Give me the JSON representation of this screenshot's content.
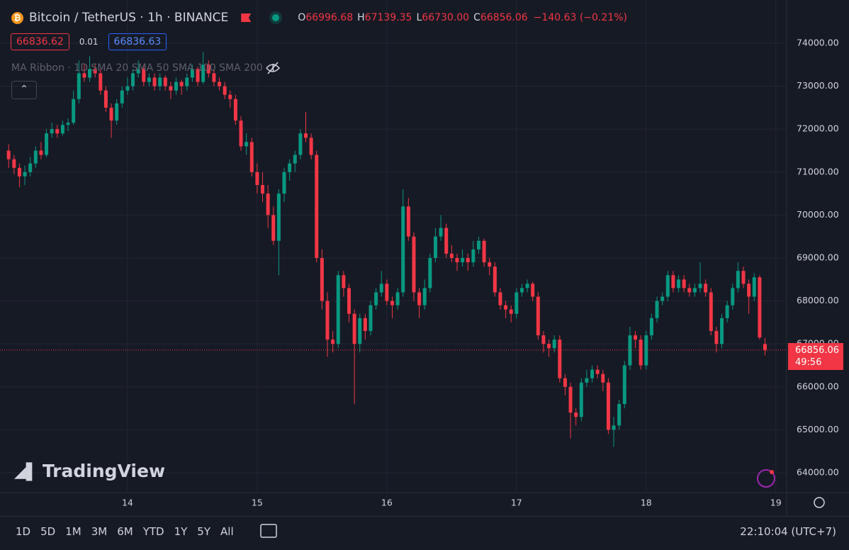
{
  "header": {
    "title": "Bitcoin / TetherUS · 1h · BINANCE",
    "ohlc": [
      {
        "key": "O",
        "value": "66996.68"
      },
      {
        "key": "H",
        "value": "67139.35"
      },
      {
        "key": "L",
        "value": "66730.00"
      },
      {
        "key": "C",
        "value": "66856.06"
      }
    ],
    "change": "−140.63 (−0.21%)",
    "bid": "66836.62",
    "spread": "0.01",
    "ask": "66836.63",
    "indicator": "MA Ribbon",
    "indicator_params": "1D SMA 20 SMA 50 SMA 100 SMA 200"
  },
  "logo": "TradingView",
  "last_price": {
    "label": "66856.06",
    "countdown": "49:56"
  },
  "toolbar": {
    "ranges": [
      "1D",
      "5D",
      "1M",
      "3M",
      "6M",
      "YTD",
      "1Y",
      "5Y",
      "All"
    ],
    "clock": "22:10:04 (UTC+7)"
  },
  "chart_data": {
    "type": "candlestick",
    "up_color": "#089981",
    "down_color": "#f23645",
    "grid": true,
    "xlim": [
      -1.6,
      144
    ],
    "ylim": [
      63538,
      75007
    ],
    "xticks": [
      {
        "value": 22,
        "label": "14"
      },
      {
        "value": 46,
        "label": "15"
      },
      {
        "value": 70,
        "label": "16"
      },
      {
        "value": 94,
        "label": "17"
      },
      {
        "value": 118,
        "label": "18"
      },
      {
        "value": 142,
        "label": "19"
      }
    ],
    "yticks": [
      {
        "value": 64000,
        "label": "64000.00"
      },
      {
        "value": 65000,
        "label": "65000.00"
      },
      {
        "value": 66000,
        "label": "66000.00"
      },
      {
        "value": 67000,
        "label": "67000.00"
      },
      {
        "value": 68000,
        "label": "68000.00"
      },
      {
        "value": 69000,
        "label": "69000.00"
      },
      {
        "value": 70000,
        "label": "70000.00"
      },
      {
        "value": 71000,
        "label": "71000.00"
      },
      {
        "value": 72000,
        "label": "72000.00"
      },
      {
        "value": 73000,
        "label": "73000.00"
      },
      {
        "value": 74000,
        "label": "74000.00"
      }
    ],
    "candles": [
      [
        71500,
        71650,
        71100,
        71300
      ],
      [
        71300,
        71400,
        70950,
        71100
      ],
      [
        71100,
        71200,
        70650,
        70900
      ],
      [
        70900,
        71150,
        70700,
        71000
      ],
      [
        71000,
        71350,
        70900,
        71200
      ],
      [
        71200,
        71600,
        71100,
        71500
      ],
      [
        71500,
        71700,
        71300,
        71400
      ],
      [
        71400,
        72000,
        71350,
        71900
      ],
      [
        71900,
        72150,
        71800,
        72000
      ],
      [
        72000,
        72100,
        71800,
        71900
      ],
      [
        71900,
        72200,
        71850,
        72100
      ],
      [
        72100,
        72250,
        71950,
        72150
      ],
      [
        72150,
        72900,
        72100,
        72700
      ],
      [
        72700,
        73600,
        72600,
        73300
      ],
      [
        73300,
        73500,
        73100,
        73200
      ],
      [
        73200,
        73700,
        73100,
        73400
      ],
      [
        73400,
        73500,
        73200,
        73300
      ],
      [
        73300,
        73400,
        72800,
        72900
      ],
      [
        72900,
        73000,
        72400,
        72500
      ],
      [
        72500,
        72600,
        71800,
        72200
      ],
      [
        72200,
        72700,
        72100,
        72600
      ],
      [
        72600,
        73000,
        72500,
        72900
      ],
      [
        72900,
        73200,
        72800,
        73000
      ],
      [
        73000,
        73400,
        72900,
        73300
      ],
      [
        73300,
        73600,
        73200,
        73400
      ],
      [
        73400,
        73500,
        73000,
        73100
      ],
      [
        73100,
        73300,
        73000,
        73200
      ],
      [
        73200,
        73300,
        72900,
        73000
      ],
      [
        73000,
        73300,
        72900,
        73200
      ],
      [
        73200,
        73250,
        72900,
        73000
      ],
      [
        73000,
        73100,
        72700,
        72900
      ],
      [
        72900,
        73200,
        72800,
        73100
      ],
      [
        73100,
        73150,
        72800,
        73000
      ],
      [
        73000,
        73300,
        72900,
        73200
      ],
      [
        73200,
        73500,
        73100,
        73400
      ],
      [
        73400,
        73450,
        73000,
        73100
      ],
      [
        73100,
        73800,
        73050,
        73500
      ],
      [
        73500,
        73600,
        73200,
        73300
      ],
      [
        73300,
        73400,
        73000,
        73100
      ],
      [
        73100,
        73200,
        72900,
        73000
      ],
      [
        73000,
        73100,
        72700,
        72800
      ],
      [
        72800,
        72900,
        72500,
        72700
      ],
      [
        72700,
        72800,
        72100,
        72200
      ],
      [
        72200,
        72300,
        71500,
        71600
      ],
      [
        71600,
        71900,
        71400,
        71700
      ],
      [
        71700,
        71800,
        70900,
        71000
      ],
      [
        71000,
        71200,
        70500,
        70700
      ],
      [
        70700,
        71000,
        70300,
        70500
      ],
      [
        70500,
        70700,
        69700,
        70000
      ],
      [
        70000,
        70200,
        69300,
        69400
      ],
      [
        69400,
        70600,
        68600,
        70500
      ],
      [
        70500,
        71100,
        70300,
        71000
      ],
      [
        71000,
        71300,
        70800,
        71200
      ],
      [
        71200,
        71500,
        71000,
        71400
      ],
      [
        71400,
        72000,
        71300,
        71900
      ],
      [
        71900,
        72400,
        71700,
        71800
      ],
      [
        71800,
        71900,
        71300,
        71400
      ],
      [
        71400,
        71500,
        68900,
        69000
      ],
      [
        69000,
        69200,
        67800,
        68000
      ],
      [
        68000,
        68200,
        66700,
        67100
      ],
      [
        67100,
        67300,
        66800,
        67000
      ],
      [
        67000,
        68700,
        66900,
        68600
      ],
      [
        68600,
        68700,
        68100,
        68300
      ],
      [
        68300,
        68400,
        67500,
        67700
      ],
      [
        67700,
        67800,
        65600,
        67000
      ],
      [
        67000,
        67700,
        66800,
        67600
      ],
      [
        67600,
        67700,
        67100,
        67300
      ],
      [
        67300,
        68000,
        67200,
        67900
      ],
      [
        67900,
        68300,
        67800,
        68200
      ],
      [
        68200,
        68700,
        68100,
        68400
      ],
      [
        68400,
        68500,
        67900,
        68000
      ],
      [
        68000,
        68100,
        67600,
        67900
      ],
      [
        67900,
        68300,
        67800,
        68200
      ],
      [
        68200,
        70600,
        68100,
        70200
      ],
      [
        70200,
        70400,
        69400,
        69500
      ],
      [
        69500,
        69600,
        68000,
        68200
      ],
      [
        68200,
        68300,
        67600,
        67900
      ],
      [
        67900,
        68500,
        67800,
        68300
      ],
      [
        68300,
        69100,
        68200,
        69000
      ],
      [
        69000,
        69700,
        68900,
        69500
      ],
      [
        69500,
        70000,
        69400,
        69700
      ],
      [
        69700,
        69800,
        69000,
        69100
      ],
      [
        69100,
        69300,
        68900,
        69000
      ],
      [
        69000,
        69100,
        68700,
        68900
      ],
      [
        68900,
        69200,
        68800,
        69000
      ],
      [
        69000,
        69100,
        68700,
        68900
      ],
      [
        68900,
        69400,
        68800,
        69200
      ],
      [
        69200,
        69500,
        69100,
        69400
      ],
      [
        69400,
        69450,
        68800,
        68900
      ],
      [
        68900,
        69000,
        68600,
        68800
      ],
      [
        68800,
        68900,
        68100,
        68200
      ],
      [
        68200,
        68300,
        67800,
        67900
      ],
      [
        67900,
        68000,
        67600,
        67800
      ],
      [
        67800,
        67900,
        67500,
        67700
      ],
      [
        67700,
        68300,
        67600,
        68200
      ],
      [
        68200,
        68400,
        68100,
        68300
      ],
      [
        68300,
        68500,
        68200,
        68400
      ],
      [
        68400,
        68450,
        68000,
        68100
      ],
      [
        68100,
        68200,
        67100,
        67200
      ],
      [
        67200,
        67300,
        66800,
        67000
      ],
      [
        67000,
        67100,
        66700,
        66900
      ],
      [
        66900,
        67200,
        66800,
        67100
      ],
      [
        67100,
        67200,
        66100,
        66200
      ],
      [
        66200,
        66300,
        65800,
        66000
      ],
      [
        66000,
        66100,
        64800,
        65400
      ],
      [
        65400,
        65500,
        65100,
        65300
      ],
      [
        65300,
        66200,
        65200,
        66100
      ],
      [
        66100,
        66400,
        66000,
        66200
      ],
      [
        66200,
        66500,
        66100,
        66400
      ],
      [
        66400,
        66500,
        66200,
        66300
      ],
      [
        66300,
        66400,
        65900,
        66100
      ],
      [
        66100,
        66200,
        64900,
        65000
      ],
      [
        65000,
        65300,
        64600,
        65100
      ],
      [
        65100,
        65700,
        65000,
        65600
      ],
      [
        65600,
        66600,
        65500,
        66500
      ],
      [
        66500,
        67400,
        66400,
        67200
      ],
      [
        67200,
        67300,
        66900,
        67100
      ],
      [
        67100,
        67200,
        66400,
        66500
      ],
      [
        66500,
        67300,
        66400,
        67200
      ],
      [
        67200,
        67700,
        67100,
        67600
      ],
      [
        67600,
        68100,
        67500,
        68000
      ],
      [
        68000,
        68200,
        67900,
        68100
      ],
      [
        68100,
        68700,
        68000,
        68600
      ],
      [
        68600,
        68700,
        68200,
        68300
      ],
      [
        68300,
        68600,
        68200,
        68500
      ],
      [
        68500,
        68600,
        68200,
        68300
      ],
      [
        68300,
        68400,
        68100,
        68200
      ],
      [
        68200,
        68400,
        68100,
        68300
      ],
      [
        68300,
        68900,
        68200,
        68400
      ],
      [
        68400,
        68500,
        68100,
        68200
      ],
      [
        68200,
        68300,
        67200,
        67300
      ],
      [
        67300,
        67400,
        66800,
        67000
      ],
      [
        67000,
        67700,
        66900,
        67600
      ],
      [
        67600,
        68000,
        67500,
        67900
      ],
      [
        67900,
        68400,
        67800,
        68300
      ],
      [
        68300,
        68900,
        68200,
        68700
      ],
      [
        68700,
        68800,
        68300,
        68400
      ],
      [
        68400,
        68500,
        67700,
        68100
      ],
      [
        68100,
        68650,
        68000,
        68550
      ],
      [
        68550,
        68600,
        67100,
        67150
      ],
      [
        66996.68,
        67139.35,
        66730.0,
        66856.06
      ]
    ]
  }
}
